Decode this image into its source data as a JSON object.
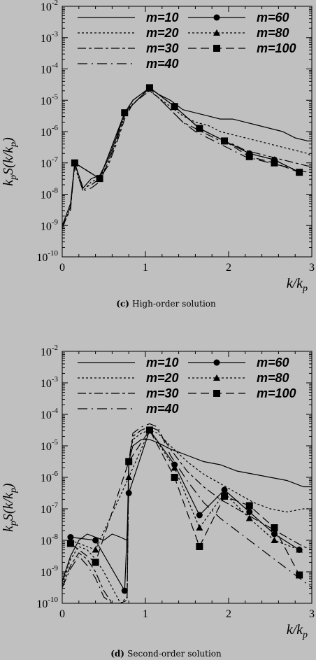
{
  "chart_data": [
    {
      "type": "line",
      "caption_letter": "(c)",
      "caption": "High-order solution",
      "xlabel": "k/k",
      "xlabel_sub": "p",
      "ylabel": "k",
      "ylabel_sub": "p",
      "ylabel_mid": "",
      "ylabel_rest": "S(k/k",
      "ylabel_sub2": "p",
      "ylabel_end": ")",
      "xlim": [
        0,
        3
      ],
      "ylim_exp": [
        -10,
        -2
      ],
      "log_y": true,
      "x_ticks": [
        "0",
        "1",
        "2",
        "3"
      ],
      "y_ticks_exp": [
        "-10",
        "-9",
        "-8",
        "-7",
        "-6",
        "-5",
        "-4",
        "-3",
        "-2"
      ],
      "legend": [
        "m=10",
        "m=20",
        "m=30",
        "m=40",
        "m=60",
        "m=80",
        "m=100"
      ],
      "series": [
        {
          "name": "m=10",
          "dash": "",
          "marker": "none",
          "x": [
            0,
            0.1,
            0.15,
            0.25,
            0.35,
            0.45,
            0.55,
            0.65,
            0.75,
            0.85,
            0.95,
            1.05,
            1.15,
            1.3,
            1.45,
            1.6,
            1.75,
            1.9,
            2.05,
            2.2,
            2.35,
            2.5,
            2.65,
            2.8,
            2.95,
            3.0
          ],
          "y": [
            -9.0,
            -8.3,
            -7.0,
            -7.8,
            -7.5,
            -7.4,
            -6.9,
            -6.2,
            -5.4,
            -5.0,
            -4.8,
            -4.6,
            -4.8,
            -5.0,
            -5.3,
            -5.4,
            -5.5,
            -5.6,
            -5.6,
            -5.7,
            -5.8,
            -5.9,
            -6.0,
            -6.2,
            -6.3,
            -6.3
          ]
        },
        {
          "name": "m=20",
          "dash": "3,3",
          "marker": "none",
          "x": [
            0,
            0.1,
            0.15,
            0.25,
            0.35,
            0.45,
            0.55,
            0.65,
            0.75,
            0.85,
            0.95,
            1.05,
            1.15,
            1.3,
            1.45,
            1.6,
            1.75,
            1.9,
            2.05,
            2.2,
            2.35,
            2.5,
            2.65,
            2.8,
            2.95,
            3.0
          ],
          "y": [
            -9.1,
            -8.4,
            -7.1,
            -7.9,
            -7.6,
            -7.5,
            -7.0,
            -6.3,
            -5.5,
            -5.0,
            -4.8,
            -4.7,
            -4.9,
            -5.2,
            -5.5,
            -5.7,
            -5.8,
            -6.0,
            -6.1,
            -6.2,
            -6.3,
            -6.4,
            -6.5,
            -6.6,
            -6.7,
            -6.8
          ]
        },
        {
          "name": "m=30",
          "dash": "12,4,4,4",
          "marker": "none",
          "x": [
            0,
            0.1,
            0.15,
            0.25,
            0.35,
            0.45,
            0.55,
            0.65,
            0.75,
            0.85,
            0.95,
            1.05,
            1.15,
            1.3,
            1.45,
            1.6,
            1.75,
            1.9,
            2.05,
            2.2,
            2.35,
            2.5,
            2.65,
            2.8,
            2.95,
            3.0
          ],
          "y": [
            -9.0,
            -8.5,
            -7.0,
            -7.8,
            -7.7,
            -7.5,
            -7.1,
            -6.4,
            -5.6,
            -5.1,
            -4.9,
            -4.7,
            -4.9,
            -5.3,
            -5.7,
            -5.9,
            -6.1,
            -6.3,
            -6.4,
            -6.6,
            -6.7,
            -6.8,
            -6.9,
            -7.0,
            -7.1,
            -7.1
          ]
        },
        {
          "name": "m=40",
          "dash": "14,6,2,6",
          "marker": "none",
          "x": [
            0,
            0.1,
            0.15,
            0.25,
            0.35,
            0.45,
            0.55,
            0.65,
            0.75,
            0.85,
            0.95,
            1.05,
            1.15,
            1.3,
            1.45,
            1.6,
            1.75,
            1.9,
            2.05,
            2.2,
            2.35,
            2.5,
            2.65,
            2.8,
            2.95,
            3.0
          ],
          "y": [
            -9.1,
            -8.4,
            -7.1,
            -7.9,
            -7.8,
            -7.6,
            -7.0,
            -6.3,
            -5.5,
            -5.0,
            -4.8,
            -4.6,
            -4.9,
            -5.3,
            -5.7,
            -6.0,
            -6.2,
            -6.4,
            -6.6,
            -6.8,
            -6.9,
            -7.0,
            -7.1,
            -7.2,
            -7.3,
            -7.3
          ]
        },
        {
          "name": "m=60",
          "dash": "",
          "marker": "circle",
          "x": [
            0.15,
            0.45,
            0.75,
            1.05,
            1.35,
            1.65,
            1.95,
            2.25,
            2.55,
            2.85
          ],
          "y": [
            -7.0,
            -7.5,
            -5.4,
            -4.6,
            -5.2,
            -5.9,
            -6.3,
            -6.7,
            -6.9,
            -7.3
          ]
        },
        {
          "name": "m=80",
          "dash": "3,3",
          "marker": "triangle",
          "x": [
            0.15,
            0.45,
            0.75,
            1.05,
            1.35,
            1.65,
            1.95,
            2.25,
            2.55,
            2.85
          ],
          "y": [
            -7.0,
            -7.5,
            -5.4,
            -4.6,
            -5.2,
            -5.9,
            -6.3,
            -6.7,
            -6.9,
            -7.3
          ]
        },
        {
          "name": "m=100",
          "dash": "12,6",
          "marker": "square",
          "x": [
            0.15,
            0.45,
            0.75,
            1.05,
            1.35,
            1.65,
            1.95,
            2.25,
            2.55,
            2.85
          ],
          "y": [
            -7.0,
            -7.5,
            -5.4,
            -4.6,
            -5.2,
            -5.9,
            -6.3,
            -6.8,
            -7.0,
            -7.3
          ]
        }
      ]
    },
    {
      "type": "line",
      "caption_letter": "(d)",
      "caption": "Second-order solution",
      "xlabel": "k/k",
      "xlabel_sub": "p",
      "ylabel": "k",
      "ylabel_sub": "p",
      "ylabel_mid": "",
      "ylabel_rest": "S(k/k",
      "ylabel_sub2": "p",
      "ylabel_end": ")",
      "xlim": [
        0,
        3
      ],
      "ylim_exp": [
        -10,
        -2
      ],
      "log_y": true,
      "x_ticks": [
        "0",
        "1",
        "2",
        "3"
      ],
      "y_ticks_exp": [
        "-10",
        "-9",
        "-8",
        "-7",
        "-6",
        "-5",
        "-4",
        "-3",
        "-2"
      ],
      "legend": [
        "m=10",
        "m=20",
        "m=30",
        "m=40",
        "m=60",
        "m=80",
        "m=100"
      ],
      "series": [
        {
          "name": "m=10",
          "dash": "",
          "marker": "none",
          "x": [
            0,
            0.1,
            0.2,
            0.3,
            0.4,
            0.5,
            0.6,
            0.7,
            0.78,
            0.8,
            0.85,
            0.95,
            1.05,
            1.15,
            1.3,
            1.5,
            1.7,
            1.9,
            2.1,
            2.3,
            2.5,
            2.7,
            2.9,
            3.0
          ],
          "y": [
            -9.3,
            -8.5,
            -8.0,
            -7.8,
            -7.9,
            -8.0,
            -7.8,
            -7.9,
            -8.0,
            -5.5,
            -5.0,
            -4.8,
            -4.8,
            -4.9,
            -5.1,
            -5.3,
            -5.5,
            -5.6,
            -5.8,
            -5.9,
            -6.0,
            -6.1,
            -6.3,
            -6.3
          ]
        },
        {
          "name": "m=20",
          "dash": "3,3",
          "marker": "none",
          "x": [
            0,
            0.1,
            0.2,
            0.3,
            0.4,
            0.5,
            0.6,
            0.7,
            0.78,
            0.8,
            0.85,
            0.95,
            1.05,
            1.15,
            1.3,
            1.5,
            1.7,
            1.9,
            2.1,
            2.3,
            2.5,
            2.7,
            2.9,
            3.0
          ],
          "y": [
            -9.4,
            -8.6,
            -8.2,
            -8.3,
            -8.6,
            -9.0,
            -9.5,
            -10.0,
            -9.8,
            -5.5,
            -4.8,
            -4.6,
            -4.5,
            -4.6,
            -5.0,
            -5.5,
            -5.9,
            -6.2,
            -6.5,
            -6.8,
            -7.0,
            -7.1,
            -7.0,
            -7.0
          ]
        },
        {
          "name": "m=30",
          "dash": "12,4,4,4",
          "marker": "none",
          "x": [
            0,
            0.1,
            0.2,
            0.3,
            0.4,
            0.5,
            0.6,
            0.7,
            0.78,
            0.8,
            0.85,
            0.95,
            1.05,
            1.15,
            1.3,
            1.5,
            1.7,
            1.9,
            2.1,
            2.3,
            2.5,
            2.7,
            2.9,
            3.0
          ],
          "y": [
            -9.5,
            -8.8,
            -8.4,
            -8.6,
            -9.0,
            -9.6,
            -10.0,
            -10.0,
            -9.9,
            -5.6,
            -4.7,
            -4.5,
            -4.4,
            -4.5,
            -5.1,
            -5.8,
            -6.3,
            -6.7,
            -7.0,
            -7.3,
            -7.6,
            -7.9,
            -8.2,
            -8.3
          ]
        },
        {
          "name": "m=40",
          "dash": "14,6,2,6",
          "marker": "none",
          "x": [
            0,
            0.1,
            0.2,
            0.3,
            0.4,
            0.5,
            0.6,
            0.7,
            0.78,
            0.8,
            0.85,
            0.95,
            1.05,
            1.15,
            1.3,
            1.5,
            1.7,
            1.9,
            2.1,
            2.3,
            2.5,
            2.7,
            2.9,
            3.0
          ],
          "y": [
            -9.5,
            -8.9,
            -8.5,
            -8.8,
            -9.2,
            -9.8,
            -10.0,
            -10.0,
            -9.9,
            -5.5,
            -4.6,
            -4.4,
            -4.3,
            -4.4,
            -5.3,
            -6.1,
            -6.8,
            -7.3,
            -7.7,
            -8.1,
            -8.5,
            -8.9,
            -9.3,
            -9.5
          ]
        },
        {
          "name": "m=60",
          "dash": "",
          "marker": "circle",
          "x": [
            0.1,
            0.4,
            0.75,
            0.8,
            1.05,
            1.35,
            1.65,
            1.95,
            2.25,
            2.55,
            2.85
          ],
          "y": [
            -7.9,
            -8.0,
            -9.6,
            -6.5,
            -4.5,
            -5.6,
            -7.2,
            -6.4,
            -7.1,
            -7.8,
            -8.3
          ]
        },
        {
          "name": "m=80",
          "dash": "3,3",
          "marker": "triangle",
          "x": [
            0.1,
            0.4,
            0.8,
            1.05,
            1.35,
            1.65,
            1.95,
            2.25,
            2.55,
            2.85
          ],
          "y": [
            -8.0,
            -8.3,
            -6.0,
            -4.5,
            -5.7,
            -7.6,
            -6.5,
            -7.3,
            -8.0,
            -8.3
          ]
        },
        {
          "name": "m=100",
          "dash": "12,6",
          "marker": "square",
          "x": [
            0.1,
            0.4,
            0.8,
            1.05,
            1.35,
            1.65,
            1.95,
            2.25,
            2.55,
            2.85
          ],
          "y": [
            -8.1,
            -8.7,
            -5.5,
            -4.5,
            -6.0,
            -8.2,
            -6.6,
            -6.9,
            -7.6,
            -9.1
          ]
        }
      ]
    }
  ]
}
